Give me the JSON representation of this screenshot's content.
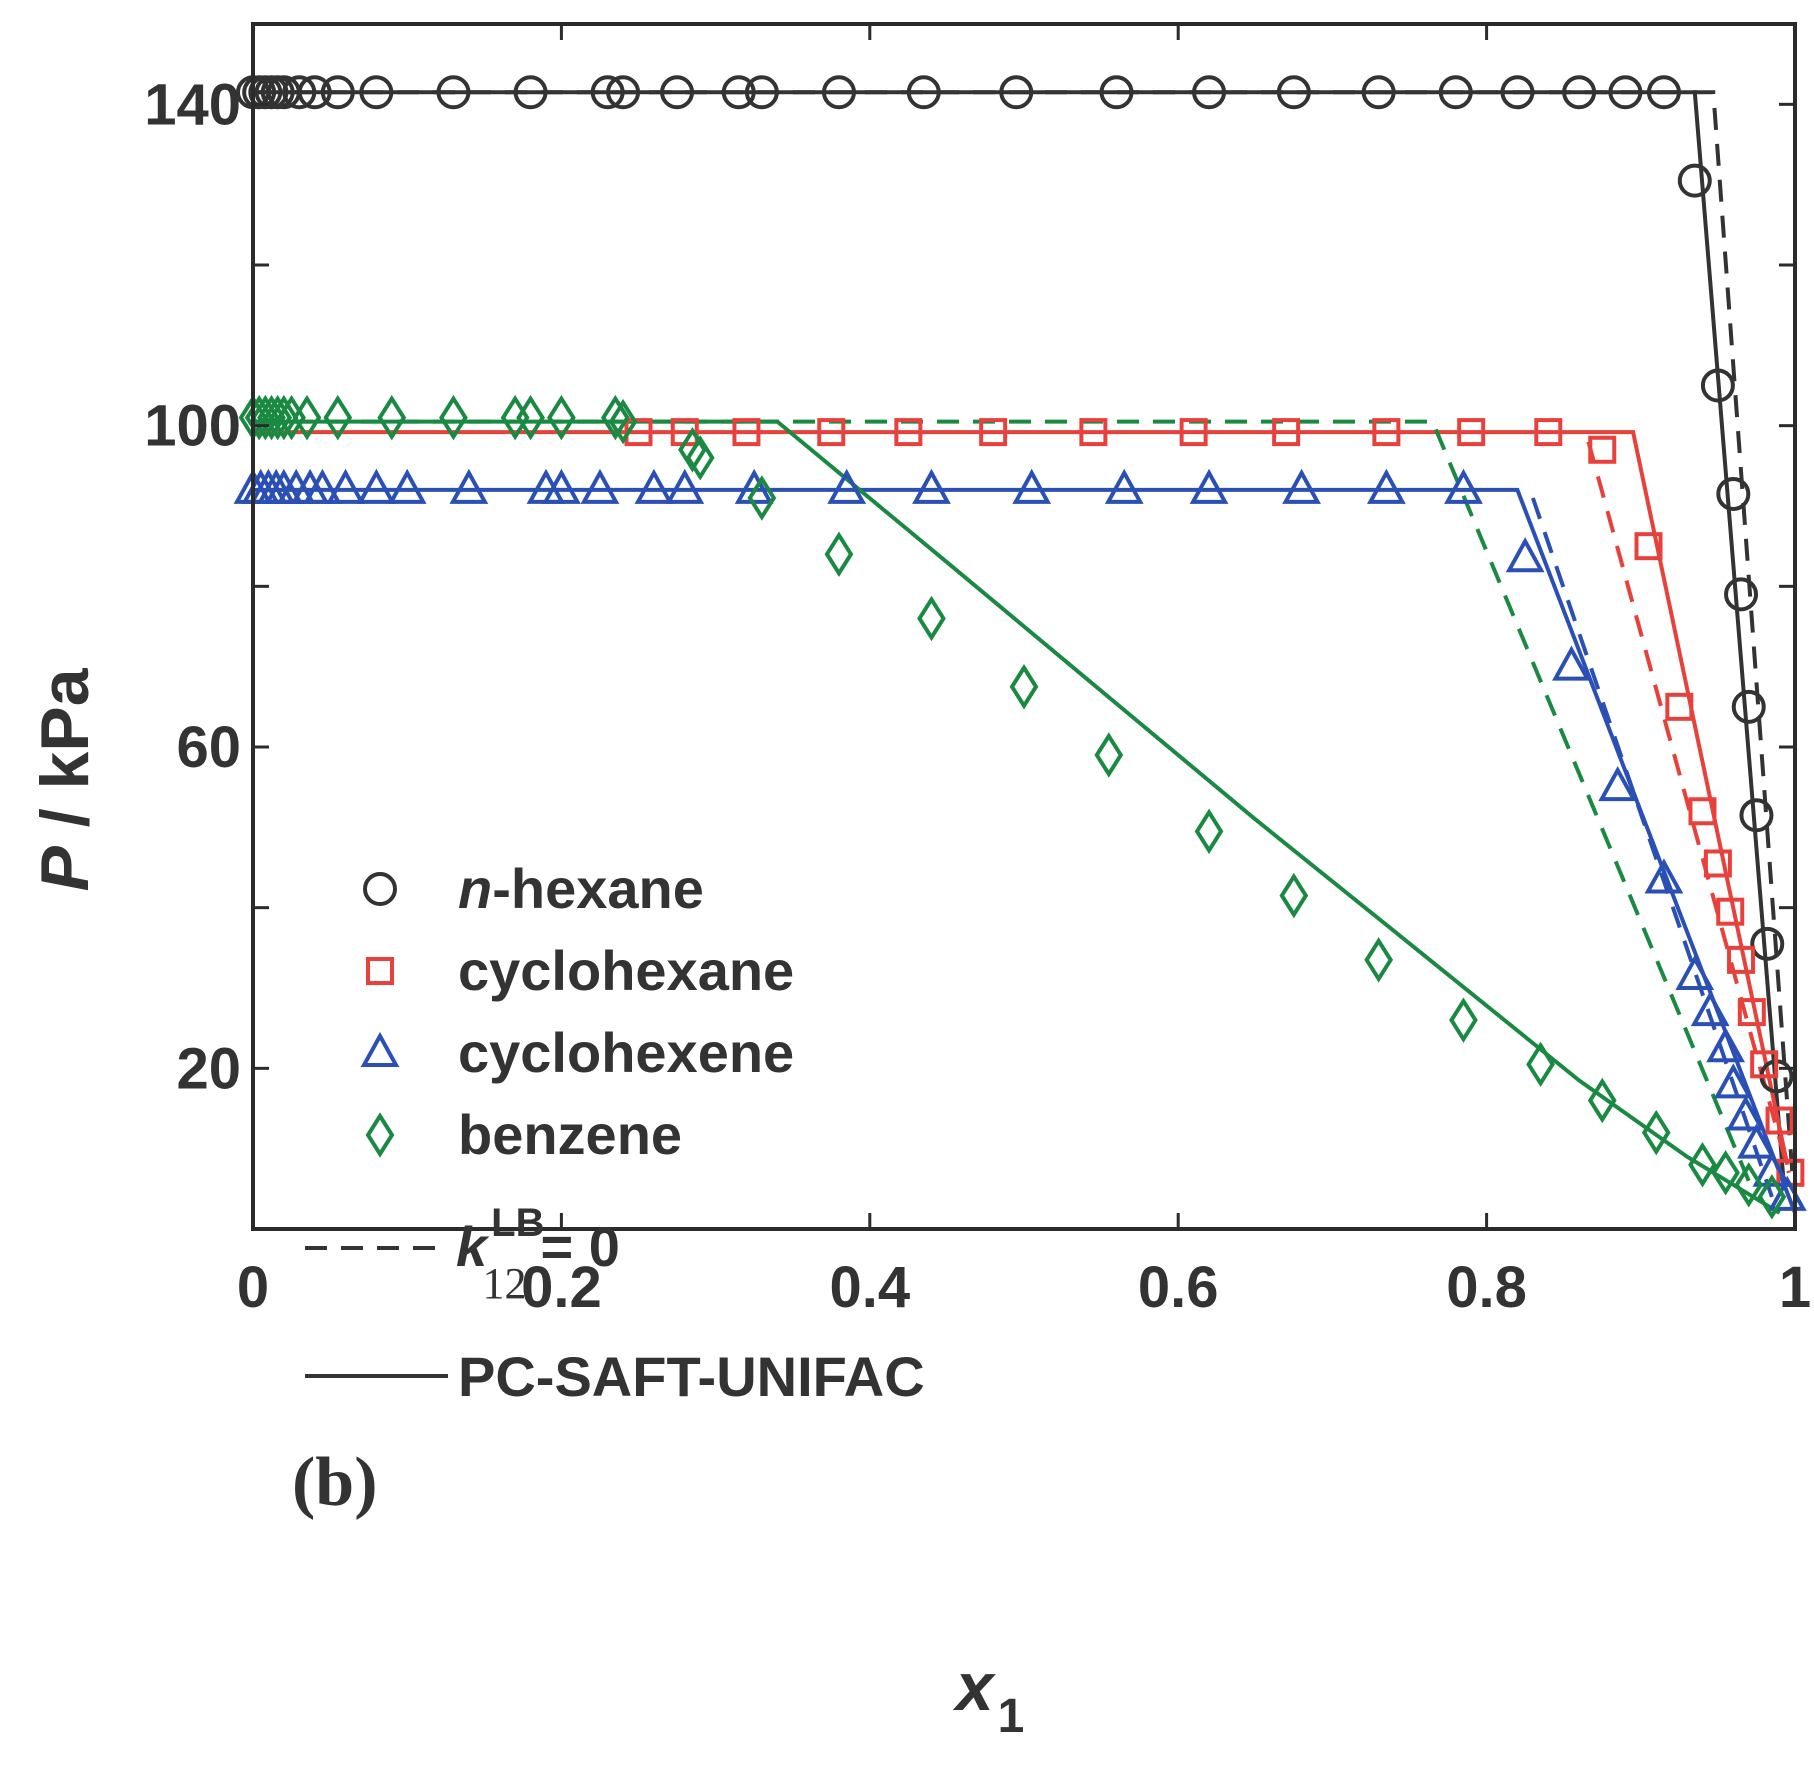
{
  "chart_data": {
    "type": "scatter",
    "title": "",
    "panel_label": "(b)",
    "xlabel": "x",
    "xlabel_subscript": "1",
    "ylabel": "P / kPa",
    "ylabel_italic_part": "P",
    "ylabel_plain_part": " / kPa",
    "xlim": [
      0,
      1
    ],
    "ylim": [
      0,
      150
    ],
    "x_ticks": [
      0,
      0.2,
      0.4,
      0.6,
      0.8,
      1
    ],
    "x_tick_labels": [
      "0",
      "0.2",
      "0.4",
      "0.6",
      "0.8",
      "1"
    ],
    "y_ticks": [
      20,
      60,
      100,
      140
    ],
    "y_tick_labels": [
      "20",
      "60",
      "100",
      "140"
    ],
    "y_minor_ticks": [
      40,
      80,
      120
    ],
    "grid": false,
    "legend": {
      "placement": "bottom-left",
      "entries": [
        {
          "marker": "circle",
          "color": "#333333",
          "prefix": "n",
          "label": "-hexane"
        },
        {
          "marker": "square",
          "color": "#e8413c",
          "prefix": "",
          "label": "cyclohexane"
        },
        {
          "marker": "triangle",
          "color": "#2a4fb5",
          "prefix": "",
          "label": "cyclohexene"
        },
        {
          "marker": "diamond",
          "color": "#1a8a43",
          "prefix": "",
          "label": "benzene"
        }
      ],
      "dashed_label": {
        "symbol": "k",
        "subscript": "12",
        "superscript": "LB",
        "rest": "= 0"
      },
      "solid_label": "PC-SAFT-UNIFAC"
    },
    "series": [
      {
        "name": "n-hexane",
        "marker": "circle",
        "color": "#333333",
        "x": [
          0,
          0.004,
          0.008,
          0.012,
          0.016,
          0.02,
          0.03,
          0.04,
          0.055,
          0.08,
          0.13,
          0.18,
          0.23,
          0.24,
          0.275,
          0.315,
          0.33,
          0.38,
          0.435,
          0.495,
          0.56,
          0.62,
          0.675,
          0.73,
          0.78,
          0.82,
          0.86,
          0.89,
          0.915,
          0.935,
          0.95,
          0.96,
          0.965,
          0.97,
          0.975,
          0.982,
          0.988
        ],
        "y": [
          141.5,
          141.5,
          141.5,
          141.5,
          141.5,
          141.5,
          141.5,
          141.5,
          141.5,
          141.5,
          141.5,
          141.5,
          141.5,
          141.5,
          141.5,
          141.5,
          141.5,
          141.5,
          141.5,
          141.5,
          141.5,
          141.5,
          141.5,
          141.5,
          141.5,
          141.5,
          141.5,
          141.5,
          141.5,
          130.5,
          105,
          91.5,
          79,
          65,
          51.5,
          35.5,
          19
        ]
      },
      {
        "name": "cyclohexane",
        "marker": "square",
        "color": "#e8413c",
        "x": [
          0.25,
          0.28,
          0.32,
          0.375,
          0.425,
          0.48,
          0.545,
          0.61,
          0.67,
          0.735,
          0.79,
          0.84,
          0.875,
          0.905,
          0.925,
          0.94,
          0.95,
          0.958,
          0.965,
          0.972,
          0.98,
          0.99,
          0.997
        ],
        "y": [
          99.2,
          99.2,
          99.2,
          99.2,
          99.2,
          99.2,
          99.2,
          99.2,
          99.2,
          99.2,
          99.2,
          99.2,
          97,
          85,
          65,
          52,
          45.5,
          39.5,
          33.5,
          27,
          20.5,
          13.5,
          7
        ]
      },
      {
        "name": "cyclohexene",
        "marker": "triangle",
        "color": "#2a4fb5",
        "x": [
          0,
          0.005,
          0.01,
          0.015,
          0.02,
          0.028,
          0.037,
          0.045,
          0.06,
          0.08,
          0.1,
          0.14,
          0.19,
          0.2,
          0.225,
          0.26,
          0.28,
          0.325,
          0.385,
          0.44,
          0.505,
          0.565,
          0.62,
          0.68,
          0.735,
          0.785,
          0.825,
          0.855,
          0.885,
          0.915,
          0.935,
          0.945,
          0.955,
          0.96,
          0.968,
          0.975,
          0.985,
          0.995
        ],
        "y": [
          92,
          92,
          92,
          92,
          92,
          92,
          92,
          92,
          92,
          92,
          92,
          92,
          92,
          92,
          92,
          92,
          92,
          92,
          92,
          92,
          92,
          92,
          92,
          92,
          92,
          92,
          83.5,
          70,
          55,
          43.5,
          31.5,
          27,
          22.5,
          18,
          14,
          10.5,
          7,
          4
        ]
      },
      {
        "name": "benzene",
        "marker": "diamond",
        "color": "#1a8a43",
        "x": [
          0,
          0.004,
          0.008,
          0.012,
          0.016,
          0.02,
          0.025,
          0.035,
          0.055,
          0.09,
          0.13,
          0.17,
          0.18,
          0.2,
          0.235,
          0.24,
          0.285,
          0.29,
          0.33,
          0.38,
          0.44,
          0.5,
          0.555,
          0.62,
          0.675,
          0.73,
          0.785,
          0.835,
          0.875,
          0.91,
          0.94,
          0.955,
          0.97,
          0.985
        ],
        "y": [
          101,
          101,
          101,
          101,
          101,
          101,
          101,
          101,
          101,
          101,
          101,
          101,
          101,
          101,
          101,
          100.5,
          97,
          96,
          91,
          84,
          76,
          67.5,
          59,
          49.5,
          41.5,
          33.5,
          26,
          20.5,
          16,
          12,
          8,
          7,
          5.5,
          4
        ]
      }
    ],
    "fits": [
      {
        "name": "n-hexane",
        "color": "#333333",
        "style": "solid",
        "x": [
          0,
          0.935,
          0.993
        ],
        "y": [
          141.5,
          141.5,
          5
        ]
      },
      {
        "name": "n-hexane",
        "color": "#333333",
        "style": "dashed",
        "x": [
          0,
          0.947,
          0.999
        ],
        "y": [
          141.5,
          141.5,
          5
        ]
      },
      {
        "name": "cyclohexane",
        "color": "#e8413c",
        "style": "solid",
        "x": [
          0,
          0.895,
          0.995
        ],
        "y": [
          99.2,
          99.2,
          8
        ]
      },
      {
        "name": "cyclohexane",
        "color": "#e8413c",
        "style": "dashed",
        "x": [
          0.866,
          0.996
        ],
        "y": [
          98,
          7
        ]
      },
      {
        "name": "cyclohexene",
        "color": "#2a4fb5",
        "style": "solid",
        "x": [
          0,
          0.82,
          1.0
        ],
        "y": [
          92,
          92,
          2
        ]
      },
      {
        "name": "cyclohexene",
        "color": "#2a4fb5",
        "style": "dashed",
        "x": [
          0.83,
          0.985
        ],
        "y": [
          91,
          4
        ]
      },
      {
        "name": "benzene",
        "color": "#1a8a43",
        "style": "solid",
        "x": [
          0,
          0.34,
          0.45,
          0.55,
          0.65,
          0.76,
          0.86,
          0.93,
          0.99
        ],
        "y": [
          100.5,
          100.5,
          83,
          67,
          51,
          34,
          18.5,
          9,
          2
        ]
      },
      {
        "name": "benzene",
        "color": "#1a8a43",
        "style": "dashed",
        "x": [
          0,
          0.765,
          0.97
        ],
        "y": [
          100.5,
          100.5,
          6
        ]
      }
    ]
  }
}
